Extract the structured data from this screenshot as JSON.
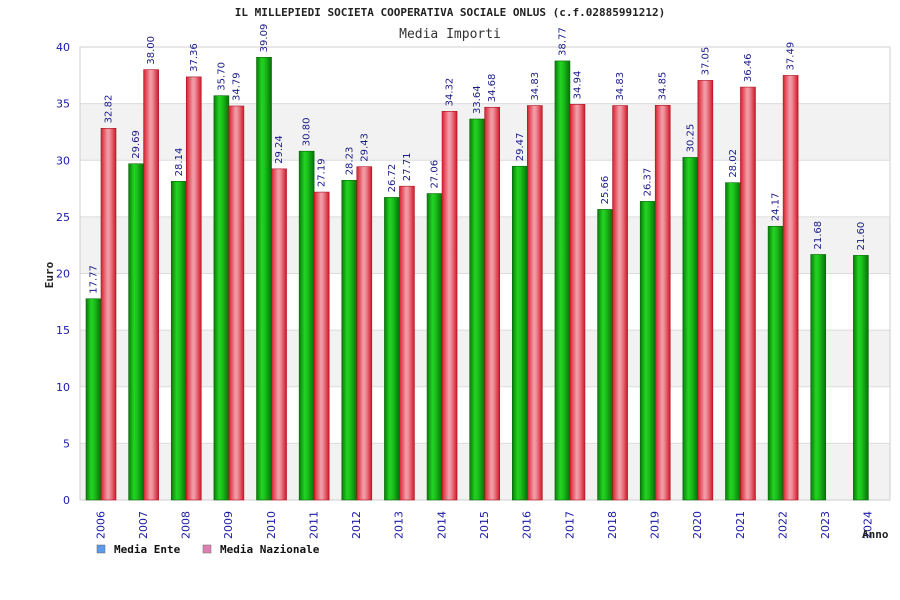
{
  "chart_data": {
    "type": "bar",
    "title": "IL MILLEPIEDI SOCIETA COOPERATIVA SOCIALE ONLUS (c.f.02885991212)",
    "subtitle": "Media Importi",
    "ylabel": "Euro",
    "xlabel": "Anno",
    "ylim": [
      0,
      40
    ],
    "yticks": [
      0,
      5,
      10,
      15,
      20,
      25,
      30,
      35,
      40
    ],
    "categories": [
      "2006",
      "2007",
      "2008",
      "2009",
      "2010",
      "2011",
      "2012",
      "2013",
      "2014",
      "2015",
      "2016",
      "2017",
      "2018",
      "2019",
      "2020",
      "2021",
      "2022",
      "2023",
      "2024"
    ],
    "series": [
      {
        "name": "Media Ente",
        "color": "#10b010",
        "legend_color": "#5b9be8",
        "values": [
          17.77,
          29.69,
          28.14,
          35.7,
          39.09,
          30.8,
          28.23,
          26.72,
          27.06,
          33.64,
          29.47,
          38.77,
          25.66,
          26.37,
          30.25,
          28.02,
          24.17,
          21.68,
          21.6
        ],
        "labels": [
          "17.77",
          "29.69",
          "28.14",
          "35.70",
          "39.09",
          "30.80",
          "28.23",
          "26.72",
          "27.06",
          "33.64",
          "29.47",
          "38.77",
          "25.66",
          "26.37",
          "30.25",
          "28.02",
          "24.17",
          "21.68",
          "21.60"
        ]
      },
      {
        "name": "Media Nazionale",
        "color": "#e03040",
        "legend_color": "#e080b0",
        "values": [
          32.82,
          38.0,
          37.36,
          34.79,
          29.24,
          27.19,
          29.43,
          27.71,
          34.32,
          34.68,
          34.83,
          34.94,
          34.83,
          34.85,
          37.05,
          36.46,
          37.49,
          null,
          null
        ],
        "labels": [
          "32.82",
          "38.00",
          "37.36",
          "34.79",
          "29.24",
          "27.19",
          "29.43",
          "27.71",
          "34.32",
          "34.68",
          "34.83",
          "34.94",
          "34.83",
          "34.85",
          "37.05",
          "36.46",
          "37.49",
          null,
          null
        ]
      }
    ],
    "grid": true,
    "legend_position": "bottom-left"
  }
}
